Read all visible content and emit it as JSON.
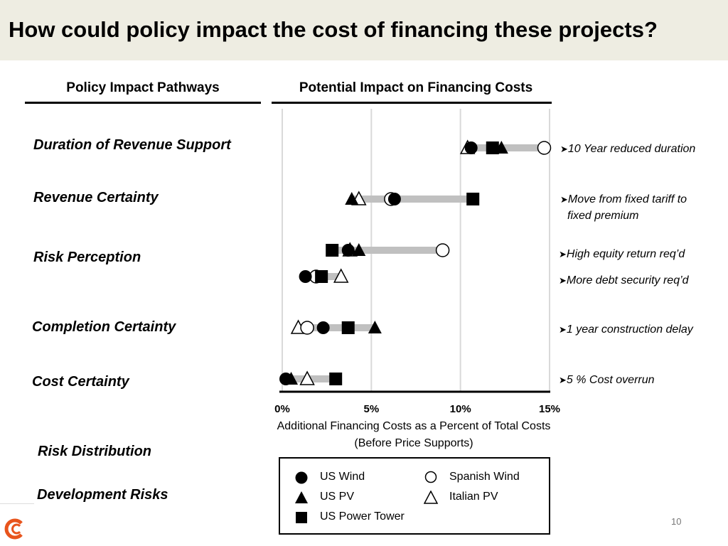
{
  "title": "How could policy impact the cost of financing these projects?",
  "left_header": "Policy Impact Pathways",
  "right_header": "Potential Impact on Financing Costs",
  "extra_labels": [
    "Risk Distribution",
    "Development Risks"
  ],
  "page_number": "10",
  "colors": {
    "header_bg": "#eeede2",
    "range_bar": "#c0c0c0",
    "gridline": "#d9d9d9",
    "logo": "#e8541c"
  },
  "legend": [
    {
      "symbol": "circle-filled",
      "label": "US Wind"
    },
    {
      "symbol": "circle-open",
      "label": "Spanish Wind"
    },
    {
      "symbol": "triangle-filled",
      "label": "US PV"
    },
    {
      "symbol": "triangle-open",
      "label": "Italian PV"
    },
    {
      "symbol": "square-filled",
      "label": "US Power Tower"
    }
  ],
  "chart_data": {
    "type": "scatter",
    "xlabel_lines": [
      "Additional Financing Costs as a Percent of Total Costs",
      "(Before Price Supports)"
    ],
    "xlim": [
      0,
      15
    ],
    "xticks": [
      0,
      5,
      10,
      15
    ],
    "xtick_labels": [
      "0%",
      "5%",
      "10%",
      "15%"
    ],
    "grid": "vertical",
    "rows": [
      {
        "label": "Duration of Revenue Support",
        "notes": [
          "10 Year reduced duration"
        ],
        "points": [
          {
            "series": "Italian PV",
            "x": 10.4
          },
          {
            "series": "US Wind",
            "x": 10.6
          },
          {
            "series": "US Power Tower",
            "x": 11.8
          },
          {
            "series": "US PV",
            "x": 12.3
          },
          {
            "series": "Spanish Wind",
            "x": 14.7
          }
        ]
      },
      {
        "label": "Revenue Certainty",
        "notes": [
          "Move from fixed tariff to",
          "fixed premium"
        ],
        "points": [
          {
            "series": "US PV",
            "x": 3.9
          },
          {
            "series": "Italian PV",
            "x": 4.3
          },
          {
            "series": "US Wind",
            "x": 6.3
          },
          {
            "series": "Spanish Wind",
            "x": 6.1
          },
          {
            "series": "US Power Tower",
            "x": 10.7
          }
        ]
      },
      {
        "label": "Risk Perception",
        "notes": [
          "High equity return req’d"
        ],
        "points": [
          {
            "series": "US Power Tower",
            "x": 2.8
          },
          {
            "series": "US Wind",
            "x": 3.7
          },
          {
            "series": "Italian PV",
            "x": 3.8
          },
          {
            "series": "US PV",
            "x": 4.3
          },
          {
            "series": "Spanish Wind",
            "x": 9.0
          }
        ]
      },
      {
        "label": "",
        "notes": [
          "More debt security req’d"
        ],
        "points": [
          {
            "series": "US Wind",
            "x": 1.3
          },
          {
            "series": "US Power Tower",
            "x": 2.2
          },
          {
            "series": "Spanish Wind",
            "x": 1.9
          },
          {
            "series": "Italian PV",
            "x": 3.3
          }
        ]
      },
      {
        "label": "Completion Certainty",
        "notes": [
          "1 year construction delay"
        ],
        "points": [
          {
            "series": "Italian PV",
            "x": 0.9
          },
          {
            "series": "Spanish Wind",
            "x": 1.4
          },
          {
            "series": "US Wind",
            "x": 2.3
          },
          {
            "series": "US Power Tower",
            "x": 3.7
          },
          {
            "series": "US PV",
            "x": 5.2
          }
        ]
      },
      {
        "label": "Cost Certainty",
        "notes": [
          "5 % Cost overrun"
        ],
        "points": [
          {
            "series": "US Wind",
            "x": 0.2
          },
          {
            "series": "US PV",
            "x": 0.5
          },
          {
            "series": "Italian PV",
            "x": 1.4
          },
          {
            "series": "US Power Tower",
            "x": 3.0
          }
        ]
      }
    ]
  }
}
